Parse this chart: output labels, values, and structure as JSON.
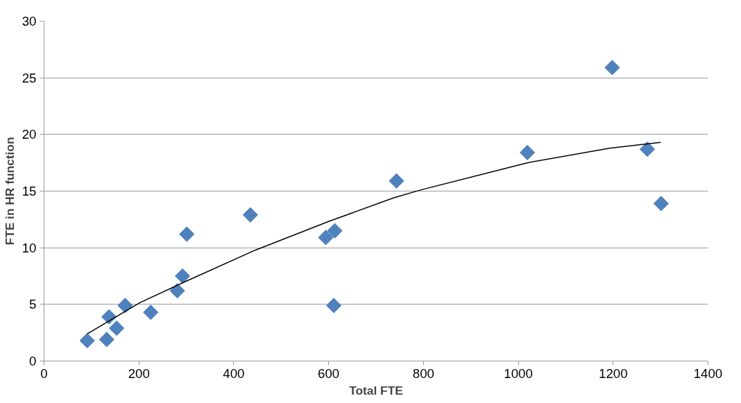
{
  "chart_data": {
    "type": "scatter",
    "xlabel": "Total FTE",
    "ylabel": "FTE in HR function",
    "xlim": [
      0,
      1400
    ],
    "xticks": [
      0,
      200,
      400,
      600,
      800,
      1000,
      1200,
      1400
    ],
    "ylim": [
      0,
      30
    ],
    "yticks": [
      0,
      5,
      10,
      15,
      20,
      25,
      30
    ],
    "grid": "y",
    "marker": "diamond",
    "series": [
      {
        "color": "#4f81bd",
        "x": [
          91,
          132,
          137,
          153,
          171,
          225,
          281,
          292,
          301,
          435,
          594,
          613,
          611,
          743,
          1019,
          1198,
          1272,
          1301
        ],
        "values": [
          1.8,
          1.9,
          3.9,
          2.9,
          4.9,
          4.3,
          6.2,
          7.5,
          11.2,
          12.9,
          10.9,
          11.5,
          4.9,
          15.9,
          18.4,
          25.9,
          18.7,
          13.9
        ]
      },
      {
        "type": "line",
        "color": "#000000",
        "marker": "none",
        "line_style": "solid",
        "x": [
          91,
          202,
          292,
          446,
          602,
          737,
          794,
          1019,
          1194,
          1300
        ],
        "values": [
          2.4,
          5.15,
          6.9,
          9.8,
          12.35,
          14.4,
          15.1,
          17.5,
          18.8,
          19.3
        ]
      }
    ]
  }
}
